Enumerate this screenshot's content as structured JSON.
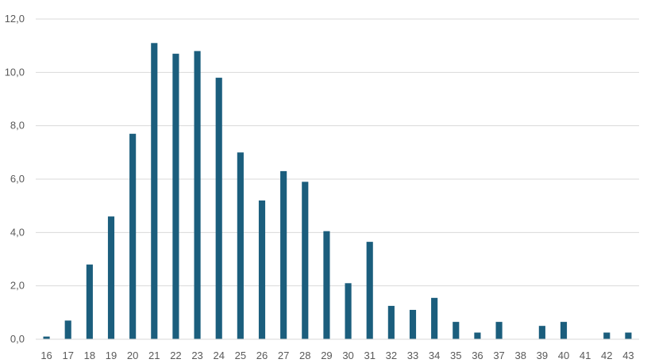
{
  "chart_data": {
    "type": "bar",
    "categories": [
      "16",
      "17",
      "18",
      "19",
      "20",
      "21",
      "22",
      "23",
      "24",
      "25",
      "26",
      "27",
      "28",
      "29",
      "30",
      "31",
      "32",
      "33",
      "34",
      "35",
      "36",
      "37",
      "38",
      "39",
      "40",
      "41",
      "42",
      "43"
    ],
    "values": [
      0.1,
      0.7,
      2.8,
      4.6,
      7.7,
      11.1,
      10.7,
      10.8,
      9.8,
      7.0,
      5.2,
      6.3,
      5.9,
      4.05,
      2.1,
      3.65,
      1.25,
      1.1,
      1.55,
      0.65,
      0.25,
      0.65,
      0,
      0.5,
      0.65,
      0,
      0.25,
      0.25
    ],
    "yticks": [
      "0,0",
      "2,0",
      "4,0",
      "6,0",
      "8,0",
      "10,0",
      "12,0"
    ],
    "ylim": [
      0,
      12
    ],
    "grid": true,
    "colors": {
      "bar": "#1b5e7d",
      "grid": "#d9d9d9",
      "tick_text": "#595959"
    }
  }
}
